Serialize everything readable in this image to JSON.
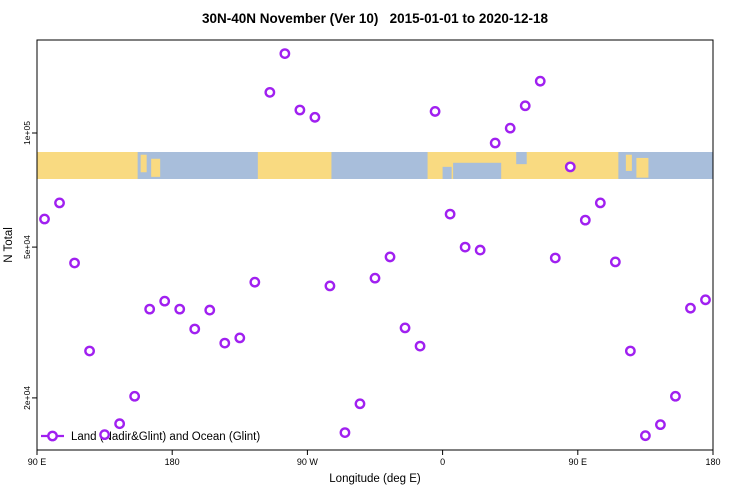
{
  "chart_data": {
    "type": "scatter",
    "title": "30N-40N November (Ver 10)   2015-01-01 to 2020-12-18",
    "xlabel": "Longitude (deg E)",
    "ylabel": "N Total",
    "y_scale": "log10",
    "x_range_deg_unwrapped": [
      90,
      540
    ],
    "y_range": [
      14500,
      176000
    ],
    "grid": "off",
    "legend": {
      "label": "Land (Nadir&Glint) and Ocean (Glint)",
      "marker": "open-circle-on-line",
      "position": "bottom-left",
      "color": "#A020F0"
    },
    "point_color": "#A020F0",
    "x_axis_ticks": [
      {
        "label": "90 E",
        "deg": 90
      },
      {
        "label": "180",
        "deg": 180
      },
      {
        "label": "90 W",
        "deg": 270
      },
      {
        "label": "0",
        "deg": 360
      },
      {
        "label": "90 E",
        "deg": 450
      },
      {
        "label": "180",
        "deg": 540
      }
    ],
    "y_axis_ticks": [
      {
        "label": "2e+04",
        "value": 20000
      },
      {
        "label": "5e+04",
        "value": 50000
      },
      {
        "label": "1e+05",
        "value": 100000
      }
    ],
    "map_strip": {
      "description": "land/ocean map band for 30N-40N latitude",
      "ocean_color": "#A8BEDB",
      "land_color": "#F9DA81",
      "land_segments_deg": [
        [
          90,
          157
        ],
        [
          237,
          286
        ],
        [
          350,
          477
        ]
      ],
      "island_patches": [
        {
          "deg": [
            159,
            163
          ],
          "yfrac": [
            0.1,
            0.75
          ]
        },
        {
          "deg": [
            166,
            172
          ],
          "yfrac": [
            0.25,
            0.92
          ]
        },
        {
          "deg": [
            482,
            486
          ],
          "yfrac": [
            0.1,
            0.7
          ]
        },
        {
          "deg": [
            489,
            497
          ],
          "yfrac": [
            0.22,
            0.95
          ]
        }
      ],
      "water_patches": [
        {
          "deg": [
            367,
            399
          ],
          "yfrac": [
            0.4,
            1.0
          ]
        },
        {
          "deg": [
            409,
            416
          ],
          "yfrac": [
            0.0,
            0.45
          ]
        },
        {
          "deg": [
            360,
            366
          ],
          "yfrac": [
            0.55,
            1.0
          ]
        }
      ]
    },
    "points": [
      {
        "lon": "95 E",
        "x": 95,
        "n": 59300
      },
      {
        "lon": "105 E",
        "x": 105,
        "n": 65400
      },
      {
        "lon": "115 E",
        "x": 115,
        "n": 45400
      },
      {
        "lon": "125 E",
        "x": 125,
        "n": 26600
      },
      {
        "lon": "135 E",
        "x": 135,
        "n": 16000
      },
      {
        "lon": "145 E",
        "x": 145,
        "n": 17100
      },
      {
        "lon": "155 E",
        "x": 155,
        "n": 20200
      },
      {
        "lon": "165 E",
        "x": 165,
        "n": 34300
      },
      {
        "lon": "175 E",
        "x": 175,
        "n": 36000
      },
      {
        "lon": "175 W",
        "x": 185,
        "n": 34300
      },
      {
        "lon": "165 W",
        "x": 195,
        "n": 30400
      },
      {
        "lon": "155 W",
        "x": 205,
        "n": 34100
      },
      {
        "lon": "145 W",
        "x": 215,
        "n": 27900
      },
      {
        "lon": "135 W",
        "x": 225,
        "n": 28800
      },
      {
        "lon": "125 W",
        "x": 235,
        "n": 40400
      },
      {
        "lon": "115 W",
        "x": 245,
        "n": 128000
      },
      {
        "lon": "105 W",
        "x": 255,
        "n": 162000
      },
      {
        "lon": "95 W",
        "x": 265,
        "n": 115000
      },
      {
        "lon": "85 W",
        "x": 275,
        "n": 110000
      },
      {
        "lon": "75 W",
        "x": 285,
        "n": 39500
      },
      {
        "lon": "65 W",
        "x": 295,
        "n": 16200
      },
      {
        "lon": "55 W",
        "x": 305,
        "n": 19300
      },
      {
        "lon": "45 W",
        "x": 315,
        "n": 41400
      },
      {
        "lon": "35 W",
        "x": 325,
        "n": 47100
      },
      {
        "lon": "25 W",
        "x": 335,
        "n": 30600
      },
      {
        "lon": "15 W",
        "x": 345,
        "n": 27400
      },
      {
        "lon": "5 W",
        "x": 355,
        "n": 114000
      },
      {
        "lon": "5 E",
        "x": 365,
        "n": 61100
      },
      {
        "lon": "15 E",
        "x": 375,
        "n": 50000
      },
      {
        "lon": "25 E",
        "x": 385,
        "n": 49100
      },
      {
        "lon": "35 E",
        "x": 395,
        "n": 94100
      },
      {
        "lon": "45 E",
        "x": 405,
        "n": 103000
      },
      {
        "lon": "55 E",
        "x": 415,
        "n": 118000
      },
      {
        "lon": "65 E",
        "x": 425,
        "n": 137000
      },
      {
        "lon": "75 E",
        "x": 435,
        "n": 46800
      },
      {
        "lon": "85 E",
        "x": 445,
        "n": 81400
      },
      {
        "lon": "95 E",
        "x": 455,
        "n": 58900
      },
      {
        "lon": "105 E",
        "x": 465,
        "n": 65400
      },
      {
        "lon": "115 E",
        "x": 475,
        "n": 45700
      },
      {
        "lon": "125 E",
        "x": 485,
        "n": 26600
      },
      {
        "lon": "135 E",
        "x": 495,
        "n": 15900
      },
      {
        "lon": "145 E",
        "x": 505,
        "n": 17000
      },
      {
        "lon": "155 E",
        "x": 515,
        "n": 20200
      },
      {
        "lon": "165 E",
        "x": 525,
        "n": 34500
      },
      {
        "lon": "175 E",
        "x": 535,
        "n": 36300
      }
    ]
  }
}
